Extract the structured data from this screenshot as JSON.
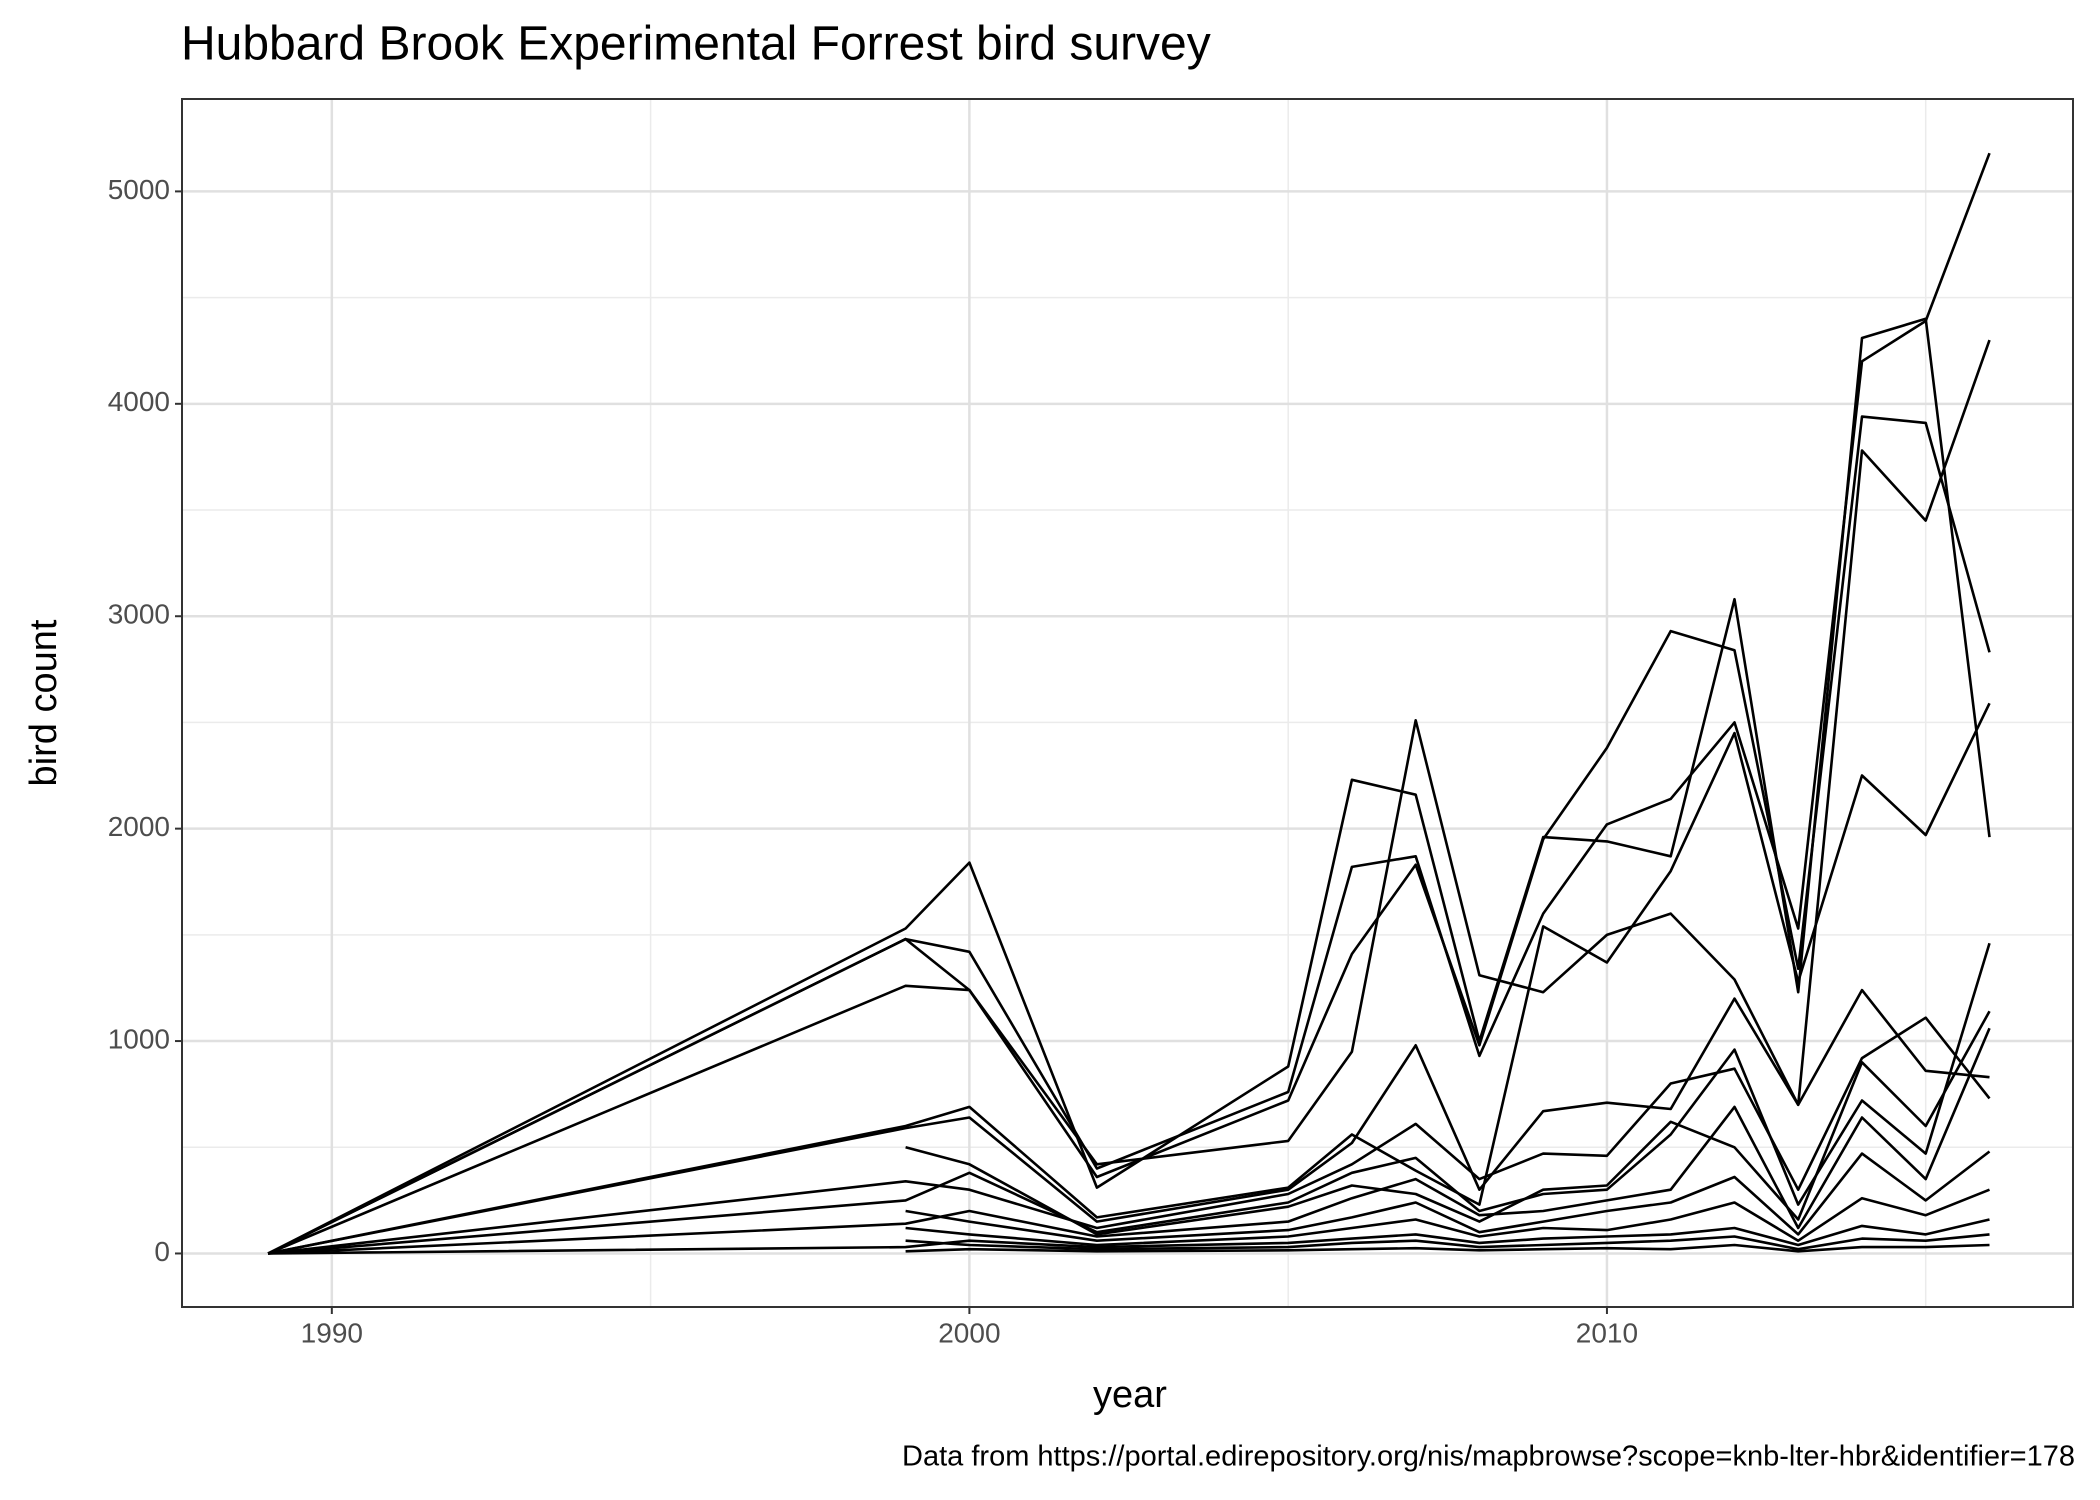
{
  "chart_data": {
    "type": "line",
    "title": "Hubbard Brook Experimental Forrest bird survey",
    "xlabel": "year",
    "ylabel": "bird count",
    "caption": "Data from https://portal.edirepository.org/nis/mapbrowse?scope=knb-lter-hbr&identifier=178",
    "x": [
      1989,
      1999,
      2000,
      2002,
      2005,
      2006,
      2007,
      2008,
      2009,
      2010,
      2011,
      2012,
      2013,
      2014,
      2015,
      2016
    ],
    "xlim": [
      1987.65,
      2017.31
    ],
    "xticks": [
      1990,
      2000,
      2010
    ],
    "xminor": [
      1995,
      2005,
      2015
    ],
    "ylim": [
      -252,
      5435
    ],
    "yticks": [
      0,
      1000,
      2000,
      3000,
      4000,
      5000
    ],
    "yminor": [
      500,
      1500,
      2500,
      3500,
      4500
    ],
    "grid": true,
    "color": "#000000",
    "series": [
      {
        "values": [
          0,
          1530,
          1840,
          310,
          880,
          2230,
          2160,
          1000,
          1960,
          1940,
          1870,
          3080,
          1230,
          4310,
          4400,
          1960
        ]
      },
      {
        "values": [
          0,
          1480,
          1420,
          400,
          760,
          1820,
          1870,
          930,
          1600,
          2020,
          2140,
          2500,
          1530,
          4200,
          4390,
          5180
        ]
      },
      {
        "values": [
          0,
          1480,
          1240,
          360,
          720,
          1410,
          1830,
          980,
          1950,
          2380,
          2930,
          2840,
          1340,
          3940,
          3910,
          2830
        ]
      },
      {
        "values": [
          0,
          1260,
          1240,
          420,
          530,
          950,
          2510,
          1310,
          1230,
          1500,
          1600,
          1290,
          700,
          3780,
          3450,
          4300
        ]
      },
      {
        "values": [
          0,
          600,
          690,
          170,
          310,
          560,
          390,
          230,
          1540,
          1370,
          1800,
          2450,
          1280,
          2250,
          1970,
          2590
        ]
      },
      {
        "values": [
          0,
          590,
          640,
          150,
          300,
          520,
          980,
          300,
          670,
          710,
          680,
          1200,
          700,
          1240,
          860,
          830
        ]
      },
      {
        "values": [
          0,
          340,
          300,
          120,
          280,
          420,
          610,
          350,
          470,
          460,
          800,
          870,
          300,
          920,
          1110,
          730
        ]
      },
      {
        "values": [
          0,
          250,
          380,
          100,
          240,
          380,
          450,
          200,
          280,
          300,
          560,
          960,
          230,
          720,
          470,
          1460
        ]
      },
      {
        "values": [
          null,
          500,
          420,
          90,
          220,
          320,
          280,
          150,
          300,
          320,
          620,
          500,
          160,
          900,
          600,
          1140
        ]
      },
      {
        "values": [
          0,
          140,
          200,
          80,
          150,
          260,
          350,
          180,
          200,
          250,
          300,
          690,
          120,
          640,
          350,
          1060
        ]
      },
      {
        "values": [
          null,
          200,
          150,
          60,
          110,
          170,
          240,
          100,
          150,
          200,
          240,
          360,
          90,
          470,
          250,
          480
        ]
      },
      {
        "values": [
          null,
          120,
          90,
          40,
          80,
          120,
          160,
          80,
          120,
          110,
          160,
          240,
          60,
          260,
          180,
          300
        ]
      },
      {
        "values": [
          0,
          30,
          60,
          30,
          50,
          70,
          90,
          50,
          70,
          80,
          90,
          120,
          40,
          130,
          90,
          160
        ]
      },
      {
        "values": [
          null,
          60,
          40,
          20,
          30,
          50,
          60,
          30,
          40,
          50,
          60,
          80,
          20,
          70,
          60,
          90
        ]
      },
      {
        "values": [
          null,
          10,
          20,
          10,
          15,
          20,
          25,
          15,
          20,
          25,
          20,
          40,
          10,
          30,
          30,
          40
        ]
      }
    ]
  }
}
